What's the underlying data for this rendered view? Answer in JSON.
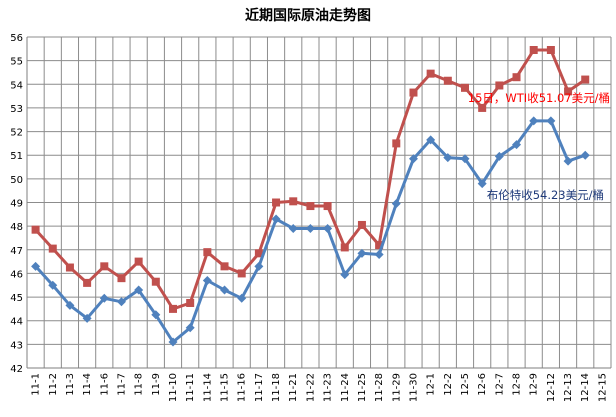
{
  "chart_data": {
    "type": "line",
    "title": "近期国际原油走势图",
    "xlabel": "",
    "ylabel": "",
    "ylim": [
      42,
      56
    ],
    "yticks": [
      42,
      43,
      44,
      45,
      46,
      47,
      48,
      49,
      50,
      51,
      52,
      53,
      54,
      55,
      56
    ],
    "grid": true,
    "legend": "none",
    "categories": [
      "11-1",
      "11-2",
      "11-3",
      "11-4",
      "11-6",
      "11-7",
      "11-8",
      "11-9",
      "11-10",
      "11-11",
      "11-14",
      "11-15",
      "11-16",
      "11-17",
      "11-18",
      "11-21",
      "11-22",
      "11-23",
      "11-24",
      "11-25",
      "11-28",
      "11-29",
      "11-30",
      "12-1",
      "12-2",
      "12-5",
      "12-6",
      "12-7",
      "12-8",
      "12-9",
      "12-12",
      "12-13",
      "12-14",
      "12-15"
    ],
    "series": [
      {
        "color": "#C0504D",
        "marker": "square",
        "values": [
          47.85,
          47.05,
          46.25,
          45.6,
          46.3,
          45.8,
          46.5,
          45.65,
          44.5,
          44.75,
          46.9,
          46.3,
          46.0,
          46.85,
          49.0,
          49.05,
          48.85,
          48.85,
          47.1,
          48.05,
          47.2,
          51.5,
          53.65,
          54.45,
          54.15,
          53.85,
          53.0,
          53.95,
          54.3,
          55.45,
          55.45,
          53.7,
          54.2,
          null
        ]
      },
      {
        "color": "#4F81BD",
        "marker": "diamond",
        "values": [
          46.3,
          45.5,
          44.65,
          44.1,
          44.95,
          44.8,
          45.3,
          44.25,
          43.1,
          43.7,
          45.7,
          45.3,
          44.95,
          46.3,
          48.3,
          47.9,
          47.9,
          47.9,
          45.95,
          46.85,
          46.8,
          48.95,
          50.85,
          51.65,
          50.9,
          50.85,
          49.8,
          50.95,
          51.45,
          52.45,
          52.45,
          50.75,
          51.0,
          null
        ]
      }
    ],
    "annotations": [
      {
        "text": "15日，WTI收51.07美元/桶",
        "color": "#FF0000"
      },
      {
        "text": "布伦特收54.23美元/桶",
        "color": "#1F3A7A"
      }
    ]
  }
}
